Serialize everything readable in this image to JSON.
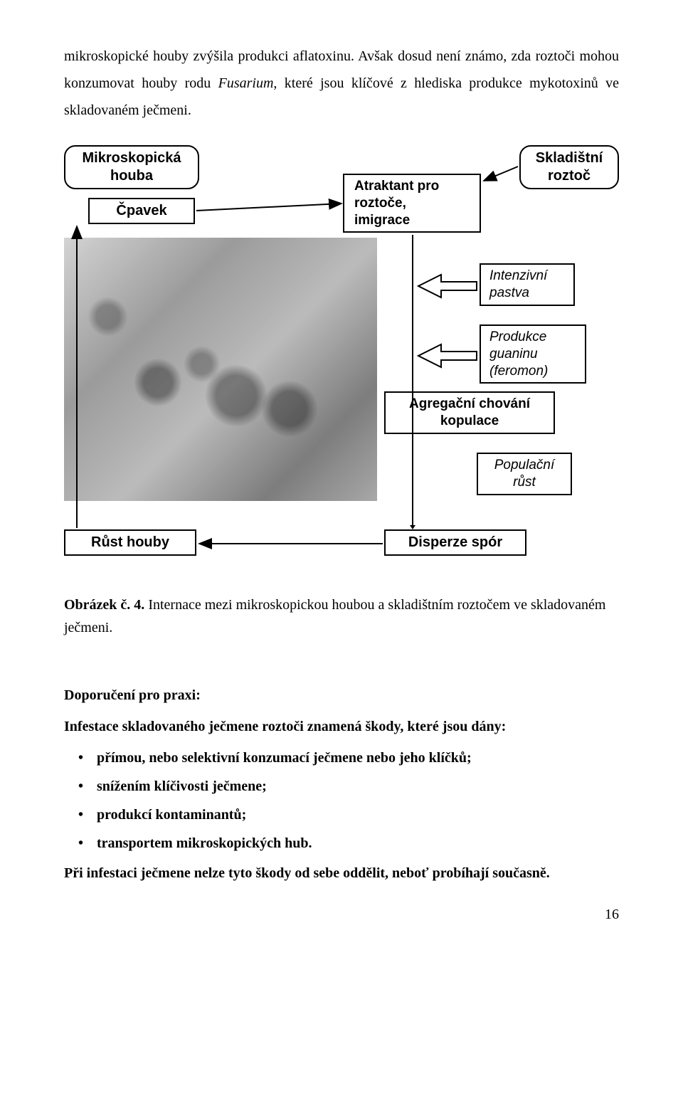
{
  "paragraph": {
    "pre_italic": "mikroskopické houby zvýšila produkci aflatoxinu. Avšak dosud není známo, zda roztoči mohou konzumovat houby rodu ",
    "italic": "Fusarium",
    "post_italic": ", které jsou klíčové z hlediska produkce mykotoxinů ve skladovaném ječmeni."
  },
  "diagram": {
    "boxes": {
      "mikroskopicka_houba": "Mikroskopická\nhouba",
      "cpavek": "Čpavek",
      "atraktant": "Atraktant pro\nroztoče,\nimigrace",
      "skladistni_roztoc": "Skladištní\nroztoč",
      "intenzivni_pastva": "Intenzivní\npastva",
      "produkce_guaninu": "Produkce\nguaninu\n(feromon)",
      "agregacni": "Agregační chování\nkopulace",
      "populacni_rust": "Populační\nrůst",
      "rust_houby": "Růst houby",
      "disperze": "Disperze spór"
    },
    "sem_alt": "SEM micrograph of storage mites on grain surface"
  },
  "caption": {
    "bold": "Obrázek č. 4.",
    "rest": " Internace mezi mikroskopickou houbou a skladištním roztočem ve skladovaném ječmeni."
  },
  "recommend": {
    "title": "Doporučení pro praxi:",
    "sub": "Infestace skladovaného ječmene roztoči znamená škody, které jsou dány:",
    "bullets": [
      "přímou, nebo selektivní konzumací ječmene nebo jeho klíčků;",
      "snížením klíčivosti ječmene;",
      "produkcí kontaminantů;",
      "transportem mikroskopických hub."
    ],
    "end": "Při infestaci ječmene nelze tyto škody od sebe oddělit, neboť probíhají současně."
  },
  "page_number": "16"
}
